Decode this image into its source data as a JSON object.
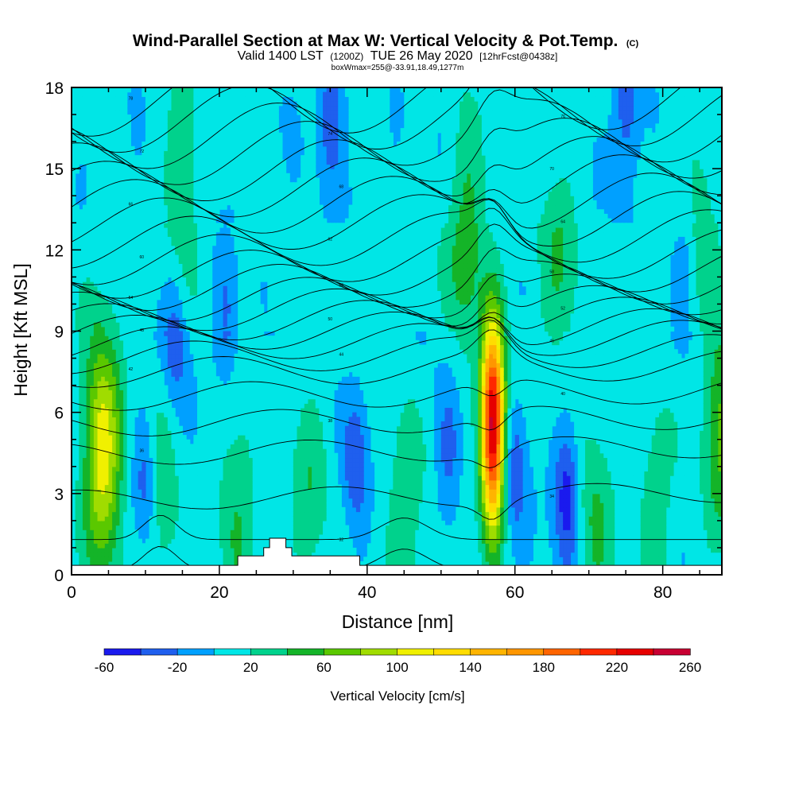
{
  "title": {
    "main": "Wind-Parallel Section at Max W: Vertical Velocity & Pot.Temp.",
    "copyright": "(C)",
    "valid_prefix": "Valid 1400 LST",
    "valid_utc": "(1200Z)",
    "valid_date": "TUE 26 May 2020",
    "forecast": "[12hrFcst@0438z]",
    "box": "boxWmax=255@-33.91,18.49,1277m"
  },
  "chart_data": {
    "type": "heatmap",
    "xlabel": "Distance [nm]",
    "ylabel": "Height [Kft MSL]",
    "xlim": [
      0,
      88
    ],
    "ylim": [
      0,
      18
    ],
    "x_ticks": [
      "0",
      "20",
      "40",
      "60",
      "80"
    ],
    "y_ticks": [
      "0",
      "3",
      "6",
      "9",
      "12",
      "15",
      "18"
    ],
    "colorbar": {
      "label": "Vertical Velocity [cm/s]",
      "tick_labels": [
        "-60",
        "-20",
        "20",
        "60",
        "100",
        "140",
        "180",
        "220",
        "260"
      ],
      "bounds": [
        -60,
        -40,
        -20,
        0,
        20,
        40,
        60,
        80,
        100,
        120,
        140,
        160,
        180,
        200,
        220,
        240,
        260
      ],
      "colors": [
        "#1a1aee",
        "#1f5fee",
        "#00a0ff",
        "#00e6e6",
        "#00d28c",
        "#14b428",
        "#5ac800",
        "#a0dc00",
        "#f0f000",
        "#ffdc00",
        "#ffb400",
        "#ff9600",
        "#ff6400",
        "#ff2800",
        "#e60000",
        "#c80032"
      ]
    },
    "terrain_profile": {
      "x": [
        0,
        21,
        21,
        22.5,
        22.5,
        26,
        26,
        26.8,
        26.8,
        29,
        29,
        29.8,
        29.8,
        39,
        39,
        88
      ],
      "y": [
        0.35,
        0.35,
        0.35,
        0.35,
        0.7,
        0.7,
        1.0,
        1.0,
        1.35,
        1.35,
        1.0,
        1.0,
        0.7,
        0.7,
        0.35,
        0.35
      ]
    },
    "updraft_max": {
      "x": 57,
      "y": 5.5,
      "w_cms": 255
    },
    "updraft_plumes": [
      {
        "x": 57,
        "y": 5.5,
        "peak": 250
      },
      {
        "x": 4.2,
        "y": 4.5,
        "peak": 110
      },
      {
        "x": 53.5,
        "y": 12.5,
        "peak": 45
      },
      {
        "x": 15,
        "y": 15,
        "peak": 30
      },
      {
        "x": 12,
        "y": 2.5,
        "peak": 30
      },
      {
        "x": 22.5,
        "y": 2.5,
        "peak": 35
      },
      {
        "x": 32,
        "y": 3.0,
        "peak": 30
      },
      {
        "x": 45,
        "y": 2.0,
        "peak": 35
      },
      {
        "x": 66,
        "y": 11.5,
        "peak": 30
      },
      {
        "x": 71,
        "y": 2.0,
        "peak": 35
      },
      {
        "x": 79,
        "y": 2.5,
        "peak": 30
      },
      {
        "x": 88,
        "y": 5.5,
        "peak": 60
      },
      {
        "x": 85,
        "y": 14.5,
        "peak": 25
      }
    ],
    "downdraft_cores": [
      {
        "x": 10,
        "y": 3.5,
        "peak": -40
      },
      {
        "x": 14,
        "y": 8.8,
        "peak": -40
      },
      {
        "x": 21,
        "y": 9.5,
        "peak": -35
      },
      {
        "x": 38.5,
        "y": 4.0,
        "peak": -40
      },
      {
        "x": 35,
        "y": 17,
        "peak": -40
      },
      {
        "x": 51,
        "y": 4.5,
        "peak": -30
      },
      {
        "x": 60,
        "y": 4.0,
        "peak": -40
      },
      {
        "x": 67,
        "y": 3.0,
        "peak": -60
      },
      {
        "x": 75,
        "y": 17.0,
        "peak": -40
      },
      {
        "x": 83,
        "y": 11.5,
        "peak": -25
      }
    ],
    "theta_contour_heights": [
      0.15,
      1.3,
      2.9,
      4.6,
      5.7,
      6.7,
      7.6,
      8.15,
      8.65,
      9.05,
      9.45,
      9.85,
      10.25,
      10.7,
      11.2,
      11.75,
      12.4,
      13.05,
      13.7,
      14.35,
      15.0,
      15.65,
      16.3,
      16.95,
      17.6
    ],
    "theta_contour_labels": [
      "30",
      "32",
      "34",
      "36",
      "38",
      "40",
      "42",
      "44",
      "46",
      "48",
      "50",
      "52",
      "54",
      "56",
      "58",
      "60",
      "62",
      "64",
      "66",
      "68",
      "70",
      "72",
      "74",
      "76",
      "78"
    ]
  }
}
